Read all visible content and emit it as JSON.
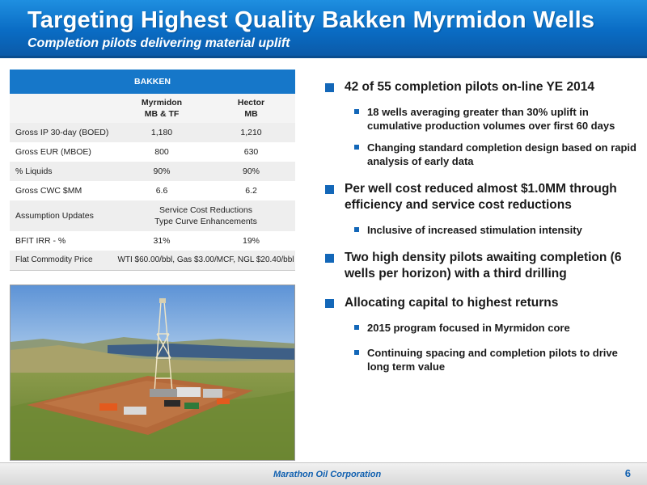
{
  "header": {
    "title": "Targeting Highest Quality Bakken Myrmidon Wells",
    "subtitle": "Completion pilots delivering material uplift"
  },
  "table": {
    "band": "BAKKEN",
    "columns": [
      "Myrmidon\nMB & TF",
      "Hector\nMB"
    ],
    "col1_l1": "Myrmidon",
    "col1_l2": "MB & TF",
    "col2_l1": "Hector",
    "col2_l2": "MB",
    "rows": [
      {
        "label": "Gross IP 30-day (BOED)",
        "v1": "1,180",
        "v2": "1,210"
      },
      {
        "label": "Gross EUR (MBOE)",
        "v1": "800",
        "v2": "630"
      },
      {
        "label": "% Liquids",
        "v1": "90%",
        "v2": "90%"
      },
      {
        "label": "Gross CWC $MM",
        "v1": "6.6",
        "v2": "6.2"
      }
    ],
    "assumption": {
      "label": "Assumption Updates",
      "line1": "Service Cost Reductions",
      "line2": "Type Curve Enhancements"
    },
    "irr": {
      "label": "BFIT IRR - %",
      "v1": "31%",
      "v2": "19%"
    },
    "price": {
      "label": "Flat Commodity Price",
      "value": "WTI $60.00/bbl, Gas $3.00/MCF, NGL $20.40/bbl"
    }
  },
  "bullets": {
    "b1": "42 of 55 completion pilots on-line YE 2014",
    "b1_s1": "18 wells averaging greater than 30% uplift in cumulative production volumes over first 60 days",
    "b1_s2": "Changing standard completion design based on rapid analysis of early data",
    "b2": "Per well cost reduced almost $1.0MM through efficiency and service cost reductions",
    "b2_s1": "Inclusive of increased stimulation intensity",
    "b3": "Two high density pilots awaiting completion (6 wells per horizon) with a third drilling",
    "b4": "Allocating capital to highest returns",
    "b4_s1": "2015 program focused in Myrmidon core",
    "b4_s2": "Continuing spacing and completion pilots to drive long term value"
  },
  "footer": {
    "company": "Marathon Oil Corporation",
    "page": "6"
  },
  "colors": {
    "accent": "#1367b8",
    "banner": "#0a6cc4"
  }
}
